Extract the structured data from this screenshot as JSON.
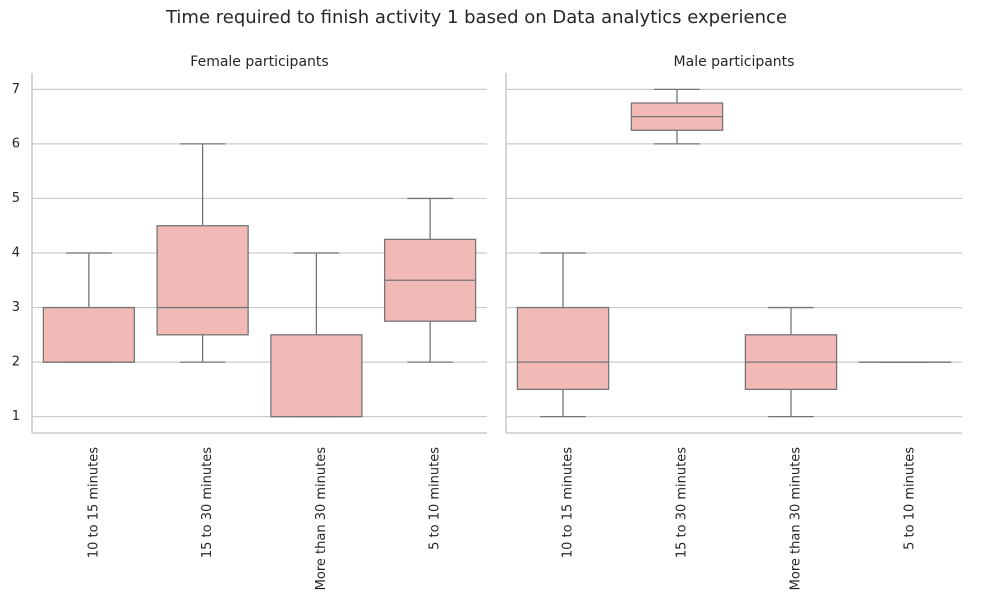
{
  "chart_data": {
    "type": "box",
    "title": "Time required to finish activity 1 based on Data analytics experience",
    "xlabel": "",
    "ylabel": "",
    "ylim": [
      0.7,
      7.3
    ],
    "yticks": [
      1,
      2,
      3,
      4,
      5,
      6,
      7
    ],
    "grid": "horizontal",
    "categories": [
      "10 to 15 minutes",
      "15 to 30 minutes",
      "More than 30 minutes",
      "5 to 10 minutes"
    ],
    "colors": {
      "box": "#f1bab7",
      "line": "#767676",
      "grid": "#cccccc"
    },
    "panels": [
      {
        "title": "Female participants",
        "boxes": [
          {
            "category": "10 to 15 minutes",
            "min": 2,
            "q1": 2,
            "median": 2,
            "q3": 3,
            "max": 4
          },
          {
            "category": "15 to 30 minutes",
            "min": 2,
            "q1": 2.5,
            "median": 3,
            "q3": 4.5,
            "max": 6
          },
          {
            "category": "More than 30 minutes",
            "min": 1,
            "q1": 1,
            "median": 1,
            "q3": 2.5,
            "max": 4
          },
          {
            "category": "5 to 10 minutes",
            "min": 2,
            "q1": 2.75,
            "median": 3.5,
            "q3": 4.25,
            "max": 5
          }
        ]
      },
      {
        "title": "Male participants",
        "boxes": [
          {
            "category": "10 to 15 minutes",
            "min": 1,
            "q1": 1.5,
            "median": 2,
            "q3": 3,
            "max": 4
          },
          {
            "category": "15 to 30 minutes",
            "min": 6,
            "q1": 6.25,
            "median": 6.5,
            "q3": 6.75,
            "max": 7
          },
          {
            "category": "More than 30 minutes",
            "min": 1,
            "q1": 1.5,
            "median": 2,
            "q3": 2.5,
            "max": 3
          },
          {
            "category": "5 to 10 minutes",
            "min": 2,
            "q1": 2,
            "median": 2,
            "q3": 2,
            "max": 2
          }
        ]
      }
    ]
  }
}
